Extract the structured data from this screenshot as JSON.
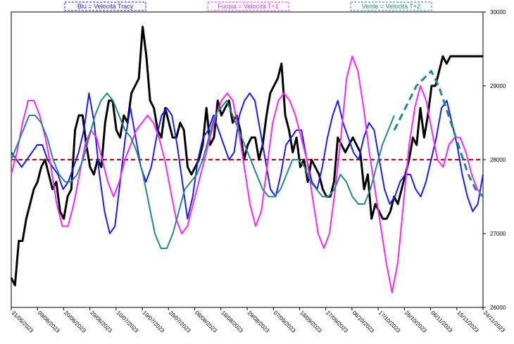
{
  "chart_data": {
    "type": "line",
    "legend": [
      {
        "label": "Blu = Velocità Tracy",
        "color": "#1a1aff"
      },
      {
        "label": "Fucsia = Velocità T+1",
        "color": "#ff22ff"
      },
      {
        "label": "Verde = Velocità T+2",
        "color": "#1f8a86"
      }
    ],
    "legend_position": "top",
    "x_tick_labels": [
      "31/05/2023",
      "09/06/2023",
      "20/06/2023",
      "29/06/2023",
      "10/07/2023",
      "19/07/2023",
      "28/07/2023",
      "08/08/2023",
      "18/08/2023",
      "29/08/2023",
      "07/09/2023",
      "18/09/2023",
      "27/09/2023",
      "06/10/2023",
      "17/10/2023",
      "26/10/2023",
      "06/11/2023",
      "15/11/2023",
      "24/11/2023"
    ],
    "y_ticks": [
      26000,
      27000,
      28000,
      29000,
      30000
    ],
    "y_tick_labels": [
      "26000",
      "27000",
      "28000",
      "29000",
      "30000"
    ],
    "ylim": [
      26000,
      30000
    ],
    "y_axis_side": "right",
    "reference_line": {
      "value": 28000,
      "color": "#cc0000",
      "style": "dashed"
    },
    "colors": {
      "price": "#000000"
    },
    "series": [
      {
        "color": "#000000",
        "style": "solid",
        "values": [
          26400,
          26300,
          26900,
          26900,
          27200,
          27400,
          27600,
          27700,
          27900,
          28000,
          27800,
          27600,
          27700,
          27300,
          27200,
          27500,
          27600,
          28400,
          28600,
          28600,
          28200,
          27900,
          27800,
          28000,
          27900,
          28500,
          28800,
          28800,
          28400,
          28300,
          28600,
          28500,
          28900,
          29000,
          29100,
          29800,
          29400,
          28800,
          28700,
          28400,
          28300,
          28700,
          28500,
          28300,
          28300,
          28500,
          28400,
          27900,
          27800,
          27900,
          28000,
          28200,
          28700,
          28200,
          28300,
          28800,
          28600,
          28700,
          28800,
          28500,
          28600,
          28400,
          28000,
          28200,
          28300,
          28300,
          28000,
          28200,
          28600,
          28900,
          29000,
          29100,
          29300,
          28600,
          28400,
          28100,
          28300,
          27900,
          28000,
          27700,
          28000,
          27900,
          27800,
          27600,
          27500,
          27500,
          27700,
          28300,
          28200,
          28100,
          28200,
          28300,
          28200,
          28100,
          27600,
          27800,
          27200,
          27400,
          27300,
          27200,
          27200,
          27300,
          27500,
          27400,
          27600,
          27800,
          28000,
          28300,
          28200,
          28700,
          28300,
          28600,
          29000,
          29000,
          29200,
          29400,
          29300,
          29400,
          29400,
          29400,
          29400,
          29400
        ],
        "x_range": [
          0,
          121
        ]
      },
      {
        "color": "#1a1aff",
        "style": "solid",
        "values": [
          28100,
          28000,
          27900,
          28000,
          28100,
          28200,
          28200,
          28000,
          27900,
          27800,
          27600,
          27700,
          27900,
          28100,
          28400,
          28900,
          28500,
          27800,
          27300,
          27000,
          27100,
          27700,
          28300,
          28700,
          28300,
          27900,
          27700,
          27900,
          28300,
          28600,
          28700,
          28600,
          28200,
          27700,
          27200,
          27500,
          28000,
          28300,
          28400,
          28600,
          28400,
          28200,
          28000,
          28100,
          28600,
          28800,
          28900,
          28800,
          28400,
          28000,
          27600,
          27500,
          27800,
          28200,
          28300,
          28400,
          28400,
          28000,
          27700,
          27600,
          27900,
          28300,
          28600,
          28800,
          28500,
          28300,
          28100,
          28000,
          28300,
          28500,
          28400,
          28000,
          27600,
          27400,
          27500,
          27700,
          27800,
          27800,
          27600,
          27500,
          27700,
          28000,
          28300,
          28700,
          28800,
          28500,
          28200,
          27800,
          27500,
          27300,
          27400,
          27800
        ],
        "x_range": [
          0,
          121
        ]
      },
      {
        "color": "#ff22ff",
        "style": "solid",
        "values": [
          27800,
          28100,
          28500,
          28800,
          28800,
          28600,
          28300,
          27900,
          27400,
          27100,
          27100,
          27400,
          27800,
          28200,
          28400,
          28300,
          28000,
          27700,
          27500,
          27700,
          28000,
          28200,
          28400,
          28500,
          28600,
          28500,
          28300,
          28000,
          27600,
          27200,
          27000,
          27100,
          27400,
          27700,
          28000,
          28300,
          28600,
          28800,
          28900,
          28800,
          28400,
          27900,
          27400,
          27100,
          27300,
          27900,
          28500,
          28800,
          28900,
          28800,
          28600,
          28300,
          28000,
          27500,
          27000,
          26800,
          27000,
          27600,
          28300,
          29100,
          29400,
          29200,
          28700,
          28100,
          27600,
          27100,
          26600,
          26200,
          26600,
          27400,
          28200,
          28700,
          29000,
          28800,
          28400,
          28000,
          27900,
          28200,
          28300,
          28300,
          28100,
          27800,
          27600,
          27500
        ]
      },
      {
        "color": "#1f8a86",
        "style": "solid",
        "values": [
          28000,
          28200,
          28400,
          28600,
          28600,
          28500,
          28300,
          28000,
          27800,
          27700,
          27700,
          27800,
          28000,
          28300,
          28600,
          28800,
          28900,
          28800,
          28600,
          28400,
          28300,
          28100,
          27800,
          27400,
          27000,
          26800,
          26800,
          27000,
          27300,
          27600,
          27700,
          27800,
          28000,
          28300,
          28600,
          28700,
          28800,
          28600,
          28400,
          28200,
          28000,
          27800,
          27600,
          27500,
          27500,
          27600,
          27800,
          28000,
          28000,
          27900,
          27700,
          27600,
          27500,
          27500,
          27600,
          27800,
          27700,
          27500,
          27400,
          27400,
          27600,
          27900,
          28200,
          28400,
          28600
        ]
      },
      {
        "color": "#1f8a86",
        "style": "dashed",
        "values": [
          28400,
          28600,
          28800,
          29000,
          29100,
          29200,
          29000,
          28700,
          28400,
          28100,
          27800,
          27600,
          27500
        ]
      }
    ]
  }
}
